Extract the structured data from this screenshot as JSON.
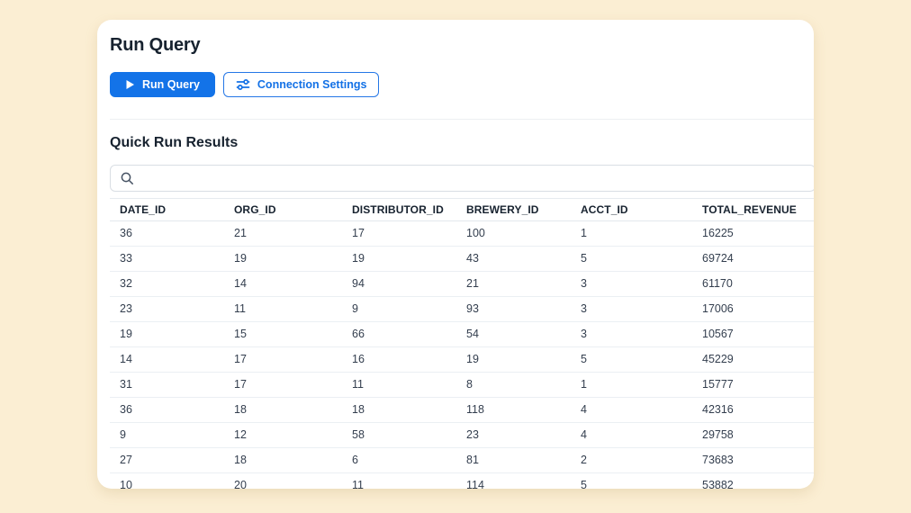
{
  "page": {
    "background_color": "#FBEED3",
    "accent_color": "#1373E8"
  },
  "header": {
    "title": "Run Query"
  },
  "toolbar": {
    "run_button_label": "Run Query",
    "connection_settings_label": "Connection Settings"
  },
  "results": {
    "heading": "Quick Run Results",
    "search": {
      "value": "",
      "placeholder": ""
    },
    "table": {
      "columns": [
        "DATE_ID",
        "ORG_ID",
        "DISTRIBUTOR_ID",
        "BREWERY_ID",
        "ACCT_ID",
        "TOTAL_REVENUE"
      ],
      "rows": [
        [
          "36",
          "21",
          "17",
          "100",
          "1",
          "16225"
        ],
        [
          "33",
          "19",
          "19",
          "43",
          "5",
          "69724"
        ],
        [
          "32",
          "14",
          "94",
          "21",
          "3",
          "61170"
        ],
        [
          "23",
          "11",
          "9",
          "93",
          "3",
          "17006"
        ],
        [
          "19",
          "15",
          "66",
          "54",
          "3",
          "10567"
        ],
        [
          "14",
          "17",
          "16",
          "19",
          "5",
          "45229"
        ],
        [
          "31",
          "17",
          "11",
          "8",
          "1",
          "15777"
        ],
        [
          "36",
          "18",
          "18",
          "118",
          "4",
          "42316"
        ],
        [
          "9",
          "12",
          "58",
          "23",
          "4",
          "29758"
        ],
        [
          "27",
          "18",
          "6",
          "81",
          "2",
          "73683"
        ],
        [
          "10",
          "20",
          "11",
          "114",
          "5",
          "53882"
        ]
      ]
    }
  }
}
